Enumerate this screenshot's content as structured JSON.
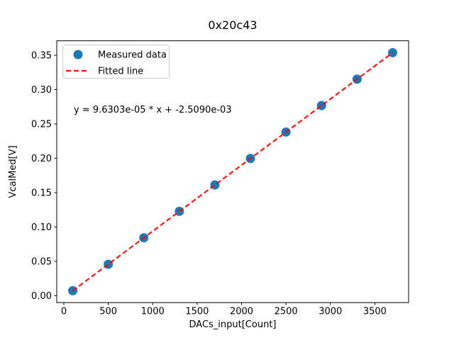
{
  "chart_data": {
    "type": "scatter",
    "title": "0x20c43",
    "xlabel": "DACs_input[Count]",
    "ylabel": "VcalMed[V]",
    "annotation": "y = 9.6303e-05 * x + -2.5090e-03",
    "series": [
      {
        "name": "Measured data",
        "type": "scatter",
        "color": "#1f77b4",
        "x": [
          100,
          500,
          900,
          1300,
          1700,
          2100,
          2500,
          2900,
          3300,
          3700
        ],
        "y": [
          0.0071,
          0.0456,
          0.0842,
          0.1227,
          0.1612,
          0.1997,
          0.2382,
          0.2768,
          0.3153,
          0.3538
        ]
      },
      {
        "name": "Fitted line",
        "type": "line",
        "style": "dashed",
        "color": "#ff0000",
        "slope": 9.6303e-05,
        "intercept": -0.002509,
        "x_range": [
          100,
          3700
        ]
      }
    ],
    "legend": {
      "position": "upper left",
      "entries": [
        {
          "label": "Measured data",
          "marker": "circle",
          "color": "#1f77b4"
        },
        {
          "label": "Fitted line",
          "marker": "dashed-line",
          "color": "#ff0000"
        }
      ]
    },
    "xlim": [
      -80,
      3880
    ],
    "ylim": [
      -0.010215,
      0.371145
    ],
    "xticks": {
      "values": [
        0,
        500,
        1000,
        1500,
        2000,
        2500,
        3000,
        3500
      ],
      "labels": [
        "0",
        "500",
        "1000",
        "1500",
        "2000",
        "2500",
        "3000",
        "3500"
      ]
    },
    "yticks": {
      "values": [
        0.0,
        0.05,
        0.1,
        0.15,
        0.2,
        0.25,
        0.3,
        0.35
      ],
      "labels": [
        "0.00",
        "0.05",
        "0.10",
        "0.15",
        "0.20",
        "0.25",
        "0.30",
        "0.35"
      ]
    },
    "grid": false,
    "colors": {
      "marker": "#1f77b4",
      "fit_line": "#ff0000",
      "axes": "#000000",
      "background": "#ffffff",
      "legend_border": "#cccccc"
    }
  }
}
